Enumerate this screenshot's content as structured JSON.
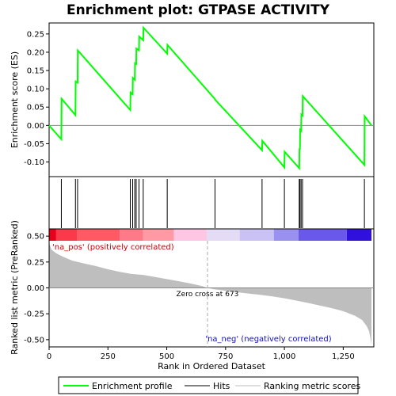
{
  "chart_data": {
    "type": "line",
    "title": "Enrichment plot: GTPASE ACTIVITY",
    "x_axis": {
      "label": "Rank in Ordered Dataset",
      "range": [
        0,
        1380
      ],
      "ticks": [
        0,
        250,
        500,
        750,
        1000,
        1250
      ],
      "tick_labels": [
        "0",
        "250",
        "500",
        "750",
        "1,000",
        "1,250"
      ]
    },
    "es_panel": {
      "ylabel": "Enrichment score (ES)",
      "ylim": [
        -0.14,
        0.28
      ],
      "ticks": [
        -0.1,
        -0.05,
        0.0,
        0.05,
        0.1,
        0.15,
        0.2,
        0.25
      ],
      "tick_labels": [
        "-0.10",
        "-0.05",
        "0.00",
        "0.05",
        "0.10",
        "0.15",
        "0.20",
        "0.25"
      ],
      "series": {
        "name": "Enrichment profile",
        "color": "#00ff00",
        "points": [
          [
            0,
            0.0
          ],
          [
            52,
            -0.038
          ],
          [
            53,
            0.073
          ],
          [
            112,
            0.028
          ],
          [
            113,
            0.12
          ],
          [
            121,
            0.117
          ],
          [
            122,
            0.205
          ],
          [
            345,
            0.042
          ],
          [
            346,
            0.09
          ],
          [
            355,
            0.085
          ],
          [
            356,
            0.13
          ],
          [
            364,
            0.125
          ],
          [
            365,
            0.17
          ],
          [
            370,
            0.168
          ],
          [
            371,
            0.21
          ],
          [
            382,
            0.205
          ],
          [
            383,
            0.243
          ],
          [
            400,
            0.233
          ],
          [
            401,
            0.267
          ],
          [
            502,
            0.196
          ],
          [
            503,
            0.22
          ],
          [
            705,
            0.072
          ],
          [
            706,
            0.07
          ],
          [
            905,
            -0.068
          ],
          [
            906,
            -0.042
          ],
          [
            1000,
            -0.115
          ],
          [
            1001,
            -0.072
          ],
          [
            1063,
            -0.117
          ],
          [
            1064,
            -0.063
          ],
          [
            1066,
            -0.066
          ],
          [
            1067,
            -0.012
          ],
          [
            1071,
            -0.015
          ],
          [
            1072,
            0.03
          ],
          [
            1077,
            0.027
          ],
          [
            1078,
            0.08
          ],
          [
            1340,
            -0.108
          ],
          [
            1341,
            0.025
          ],
          [
            1370,
            0.0
          ]
        ]
      }
    },
    "hits": {
      "name": "Hits",
      "positions": [
        52,
        112,
        121,
        345,
        355,
        364,
        370,
        382,
        400,
        502,
        705,
        905,
        1000,
        1063,
        1066,
        1071,
        1077,
        1340
      ]
    },
    "color_band": {
      "segments": [
        {
          "from": 0,
          "to": 30,
          "color": "#e8001c"
        },
        {
          "from": 30,
          "to": 120,
          "color": "#fa3a4a"
        },
        {
          "from": 120,
          "to": 300,
          "color": "#ff5a64"
        },
        {
          "from": 300,
          "to": 400,
          "color": "#ff7a88"
        },
        {
          "from": 400,
          "to": 530,
          "color": "#ff9aa4"
        },
        {
          "from": 530,
          "to": 670,
          "color": "#ffc6e4"
        },
        {
          "from": 670,
          "to": 810,
          "color": "#e3dcf4"
        },
        {
          "from": 810,
          "to": 955,
          "color": "#cac2f4"
        },
        {
          "from": 955,
          "to": 1060,
          "color": "#9a90f0"
        },
        {
          "from": 1060,
          "to": 1265,
          "color": "#6a58ea"
        },
        {
          "from": 1265,
          "to": 1370,
          "color": "#2f10dd"
        }
      ]
    },
    "metric_panel": {
      "ylabel": "Ranked list metric (PreRanked)",
      "ylim": [
        -0.57,
        0.57
      ],
      "ticks": [
        -0.5,
        -0.25,
        0.0,
        0.25,
        0.5
      ],
      "tick_labels": [
        "-0.50",
        "-0.25",
        "0.00",
        "0.25",
        "0.50"
      ],
      "fill_color": "#bebebe",
      "n_ranks": 1370,
      "curve": [
        [
          0,
          0.5
        ],
        [
          2,
          0.42
        ],
        [
          10,
          0.37
        ],
        [
          30,
          0.335
        ],
        [
          60,
          0.3
        ],
        [
          100,
          0.262
        ],
        [
          150,
          0.235
        ],
        [
          200,
          0.21
        ],
        [
          250,
          0.18
        ],
        [
          300,
          0.155
        ],
        [
          350,
          0.135
        ],
        [
          400,
          0.125
        ],
        [
          450,
          0.105
        ],
        [
          500,
          0.085
        ],
        [
          550,
          0.065
        ],
        [
          600,
          0.043
        ],
        [
          650,
          0.018
        ],
        [
          673,
          0.0
        ],
        [
          700,
          -0.012
        ],
        [
          750,
          -0.028
        ],
        [
          800,
          -0.042
        ],
        [
          850,
          -0.055
        ],
        [
          900,
          -0.068
        ],
        [
          950,
          -0.082
        ],
        [
          1000,
          -0.1
        ],
        [
          1050,
          -0.122
        ],
        [
          1100,
          -0.145
        ],
        [
          1150,
          -0.17
        ],
        [
          1200,
          -0.195
        ],
        [
          1250,
          -0.225
        ],
        [
          1300,
          -0.27
        ],
        [
          1330,
          -0.31
        ],
        [
          1350,
          -0.37
        ],
        [
          1360,
          -0.42
        ],
        [
          1366,
          -0.49
        ],
        [
          1370,
          -0.55
        ]
      ],
      "annotations": {
        "pos": "'na_pos' (positively correlated)",
        "neg": "'na_neg' (negatively correlated)",
        "zero": "Zero cross at 673"
      },
      "zero_cross": 673
    },
    "legend": [
      {
        "label": "Enrichment profile",
        "color": "#00ff00"
      },
      {
        "label": "Hits",
        "color": "#000000"
      },
      {
        "label": "Ranking metric scores",
        "color": "#bebebe"
      }
    ]
  }
}
